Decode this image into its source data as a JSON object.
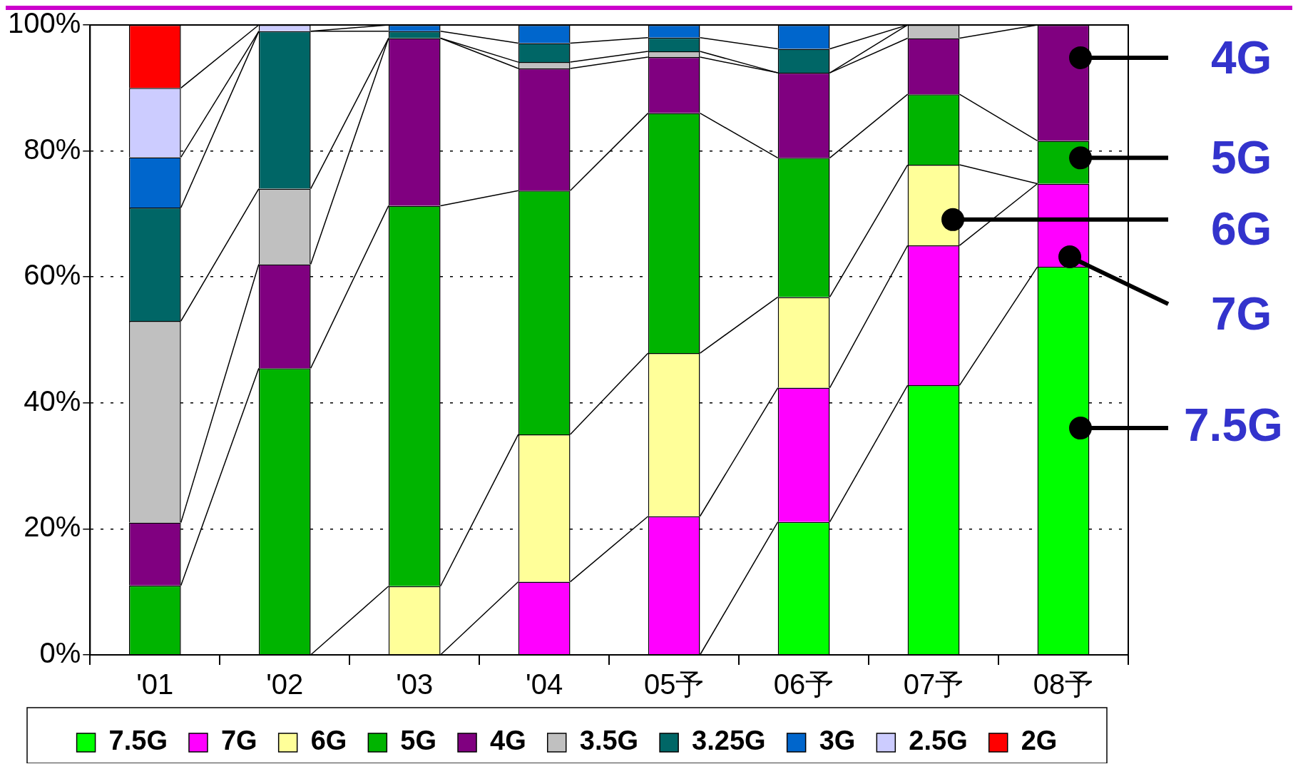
{
  "chart_data": {
    "type": "bar",
    "stacked": true,
    "categories": [
      "'01",
      "'02",
      "'03",
      "'04",
      "05予",
      "06予",
      "07予",
      "08予"
    ],
    "series": [
      {
        "name": "7.5G",
        "color": "#00ff00",
        "values": [
          0,
          0,
          0,
          0,
          0,
          21.1,
          42.8,
          61.6
        ]
      },
      {
        "name": "7G",
        "color": "#ff00ff",
        "values": [
          0,
          0,
          0,
          11.6,
          22.0,
          21.3,
          22.2,
          13.2
        ]
      },
      {
        "name": "6G",
        "color": "#ffff99",
        "values": [
          0,
          0,
          10.9,
          23.4,
          25.9,
          14.4,
          12.8,
          0
        ]
      },
      {
        "name": "5G",
        "color": "#00b400",
        "values": [
          11,
          45.5,
          60.4,
          38.7,
          38.1,
          22.1,
          11.2,
          6.8
        ]
      },
      {
        "name": "4G",
        "color": "#800080",
        "values": [
          10,
          16.5,
          26.6,
          19.4,
          8.9,
          13.5,
          8.9,
          18.4
        ]
      },
      {
        "name": "3.5G",
        "color": "#c0c0c0",
        "values": [
          32,
          12,
          0,
          1.0,
          0.9,
          0,
          2.1,
          0
        ]
      },
      {
        "name": "3.25G",
        "color": "#006666",
        "values": [
          18,
          25,
          1.1,
          3.0,
          2.2,
          3.8,
          0,
          0
        ]
      },
      {
        "name": "3G",
        "color": "#0066cc",
        "values": [
          8,
          0,
          1.0,
          2.9,
          2.0,
          3.8,
          0,
          0
        ]
      },
      {
        "name": "2.5G",
        "color": "#ccccff",
        "values": [
          11,
          1,
          0,
          0,
          0,
          0,
          0,
          0
        ]
      },
      {
        "name": "2G",
        "color": "#ff0000",
        "values": [
          10,
          0,
          0,
          0,
          0,
          0,
          0,
          0
        ]
      }
    ],
    "ylim": [
      0,
      100
    ],
    "yticks": [
      {
        "value": 0,
        "label": "0%"
      },
      {
        "value": 20,
        "label": "20%"
      },
      {
        "value": 40,
        "label": "40%"
      },
      {
        "value": 60,
        "label": "60%"
      },
      {
        "value": 80,
        "label": "80%"
      },
      {
        "value": 100,
        "label": "100%"
      }
    ],
    "grid": "y",
    "legend": "bottom",
    "annotations": [
      "4G",
      "5G",
      "6G",
      "7G",
      "7.5G"
    ]
  }
}
